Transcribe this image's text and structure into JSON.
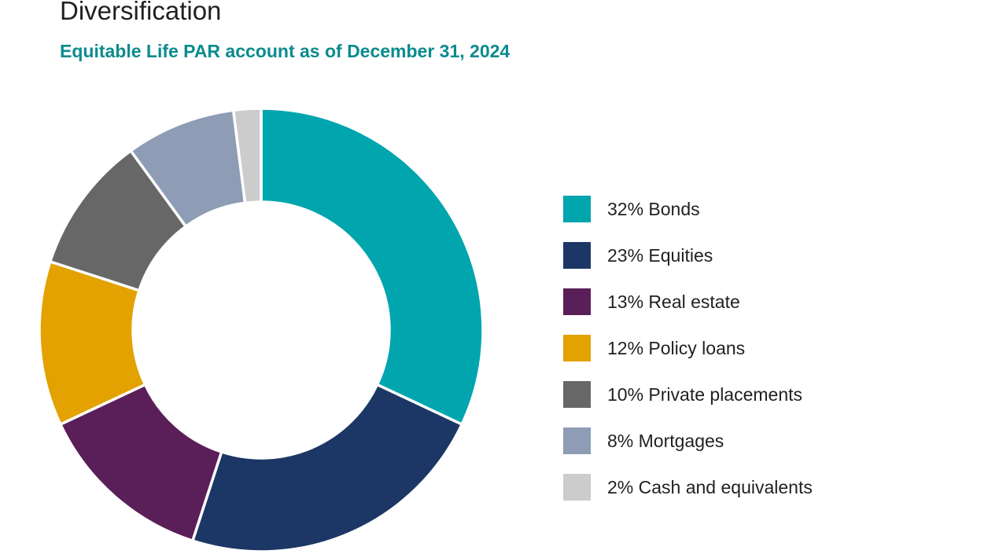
{
  "title": "Diversification",
  "subtitle": "Equitable Life PAR account as of December 31, 2024",
  "chart_data": {
    "type": "pie",
    "variant": "donut",
    "legend_position": "right",
    "series": [
      {
        "label": "32% Bonds",
        "value": 32,
        "color": "#00a5ae"
      },
      {
        "label": "23% Equities",
        "value": 23,
        "color": "#1c3766"
      },
      {
        "label": "13% Real estate",
        "value": 13,
        "color": "#5a1f58"
      },
      {
        "label": "12% Policy loans",
        "value": 12,
        "color": "#e3a200"
      },
      {
        "label": "10% Private placements",
        "value": 10,
        "color": "#676767"
      },
      {
        "label": "8% Mortgages",
        "value": 8,
        "color": "#8e9cb5"
      },
      {
        "label": "2% Cash and equivalents",
        "value": 2,
        "color": "#cccccc"
      }
    ]
  }
}
